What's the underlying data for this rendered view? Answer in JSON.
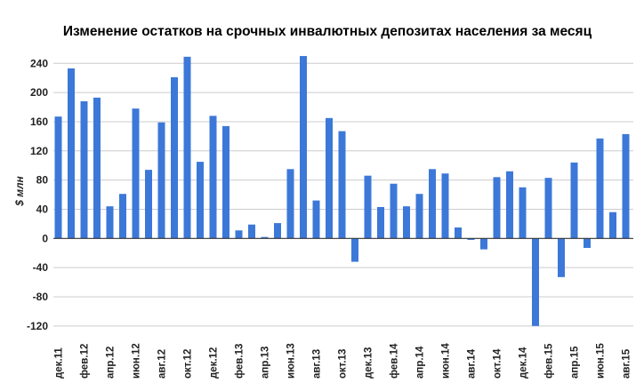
{
  "chart_data": {
    "type": "bar",
    "title": "Изменение остатков на срочных инвалютных депозитах населения за месяц",
    "ylabel": "$ млн",
    "xlabel": "",
    "ylim": [
      -120,
      250
    ],
    "y_ticks": [
      240,
      200,
      160,
      120,
      80,
      40,
      0,
      -40,
      -80,
      -120
    ],
    "grid": true,
    "bar_color": "#3c78d8",
    "x_tick_labels": [
      "дек.11",
      "фев.12",
      "апр.12",
      "июн.12",
      "авг.12",
      "окт.12",
      "дек.12",
      "фев.13",
      "апр.13",
      "июн.13",
      "авг.13",
      "окт.13",
      "дек.13",
      "фев.14",
      "апр.14",
      "июн.14",
      "авг.14",
      "окт.14",
      "дек.14",
      "фев.15",
      "апр.15",
      "июн.15",
      "авг.15"
    ],
    "values": [
      167,
      233,
      188,
      193,
      44,
      61,
      178,
      94,
      159,
      221,
      249,
      105,
      168,
      154,
      11,
      19,
      2,
      21,
      95,
      250,
      52,
      165,
      147,
      -32,
      86,
      43,
      75,
      44,
      61,
      95,
      89,
      15,
      -2,
      -15,
      84,
      92,
      70,
      -120,
      83,
      -53,
      104,
      -13,
      137,
      36,
      143
    ]
  }
}
